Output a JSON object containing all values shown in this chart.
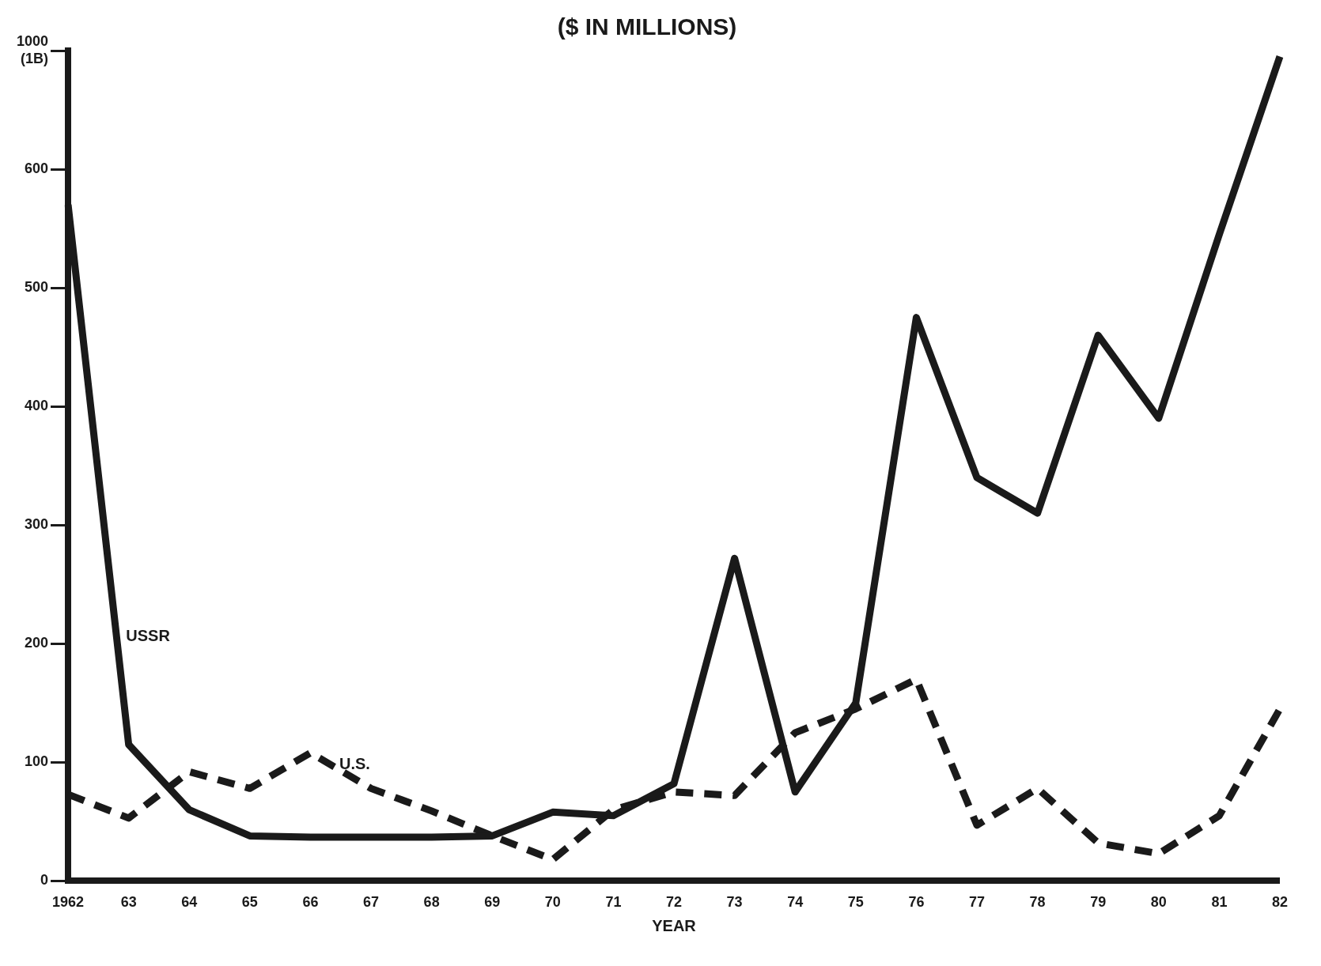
{
  "chart_data": {
    "type": "line",
    "title": "($ IN MILLIONS)",
    "xlabel": "YEAR",
    "categories": [
      "1962",
      "63",
      "64",
      "65",
      "66",
      "67",
      "68",
      "69",
      "70",
      "71",
      "72",
      "73",
      "74",
      "75",
      "76",
      "77",
      "78",
      "79",
      "80",
      "81",
      "82"
    ],
    "series": [
      {
        "name": "USSR",
        "color": "#1a1a1a",
        "line_style": "solid",
        "values": [
          570,
          115,
          60,
          38,
          37,
          37,
          37,
          38,
          58,
          55,
          82,
          272,
          75,
          150,
          475,
          340,
          310,
          460,
          390,
          545,
          695
        ]
      },
      {
        "name": "U.S.",
        "color": "#1a1a1a",
        "line_style": "dashed",
        "values": [
          73,
          53,
          92,
          78,
          108,
          78,
          59,
          38,
          18,
          60,
          75,
          72,
          125,
          145,
          170,
          47,
          78,
          32,
          23,
          55,
          145
        ]
      }
    ],
    "ylim": [
      0,
      700
    ],
    "yticks": [
      0,
      100,
      200,
      300,
      400,
      500,
      600,
      {
        "value": 700,
        "label": "1000 (1B)"
      }
    ],
    "grid": false,
    "legend": false,
    "marker": "none"
  }
}
